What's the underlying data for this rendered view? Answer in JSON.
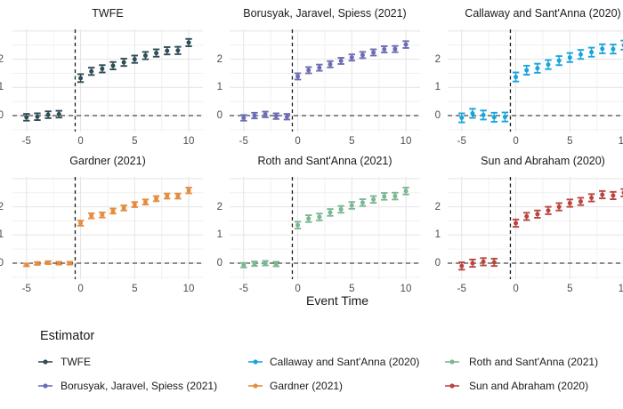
{
  "figure": {
    "xlabel": "Event Time",
    "x_tick_labels": [
      "-5",
      "0",
      "5",
      "10"
    ],
    "x_tick_values": [
      -5,
      0,
      5,
      10
    ],
    "y_tick_labels": [
      "0",
      "1",
      "2"
    ],
    "y_tick_values": [
      0,
      1,
      2
    ],
    "background_color": "#FFFFFF",
    "major_grid_color": "#E4E4E4",
    "minor_grid_color": "#F1F1F1",
    "reference_line_color": "#1A1A1A",
    "tick_text_color": "#4D4D4D"
  },
  "chart_data": {
    "type": "scatter",
    "subtype": "pointrange-event-study",
    "facet_titles": [
      "TWFE",
      "Borusyak, Jaravel, Spiess (2021)",
      "Callaway and Sant'Anna (2020)",
      "Gardner (2021)",
      "Roth and Sant'Anna (2021)",
      "Sun and Abraham (2020)"
    ],
    "xlabel": "Event Time",
    "x_range": [
      -6.3,
      11.3
    ],
    "y_range": [
      -0.57,
      3.06
    ],
    "x_ticks": [
      -5,
      0,
      5,
      10
    ],
    "y_ticks": [
      0,
      1,
      2
    ],
    "vline_x": -0.5,
    "hline_y": 0,
    "grid": true,
    "legend_position": "bottom",
    "panels": [
      {
        "title": "TWFE",
        "color": "#2F4D57",
        "x": [
          -5,
          -4,
          -3,
          -2,
          0,
          1,
          2,
          3,
          4,
          5,
          6,
          7,
          8,
          9,
          10
        ],
        "y": [
          -0.06,
          -0.04,
          0.03,
          0.05,
          1.33,
          1.57,
          1.66,
          1.77,
          1.89,
          2.0,
          2.13,
          2.22,
          2.3,
          2.31,
          2.59
        ],
        "err": [
          0.12,
          0.12,
          0.12,
          0.12,
          0.14,
          0.13,
          0.13,
          0.13,
          0.13,
          0.13,
          0.13,
          0.13,
          0.13,
          0.13,
          0.13
        ]
      },
      {
        "title": "Borusyak, Jaravel, Spiess (2021)",
        "color": "#6B6DB4",
        "x": [
          -5,
          -4,
          -3,
          -2,
          -1,
          0,
          1,
          2,
          3,
          4,
          5,
          6,
          7,
          8,
          9,
          10
        ],
        "y": [
          -0.08,
          0.0,
          0.04,
          -0.02,
          -0.04,
          1.39,
          1.61,
          1.7,
          1.82,
          1.94,
          2.06,
          2.15,
          2.24,
          2.35,
          2.36,
          2.52
        ],
        "err": [
          0.1,
          0.1,
          0.1,
          0.1,
          0.1,
          0.11,
          0.11,
          0.11,
          0.11,
          0.11,
          0.11,
          0.11,
          0.11,
          0.11,
          0.11,
          0.12
        ]
      },
      {
        "title": "Callaway and Sant'Anna (2020)",
        "color": "#18A5DC",
        "x": [
          -5,
          -4,
          -3,
          -2,
          -1,
          0,
          1,
          2,
          3,
          4,
          5,
          6,
          7,
          8,
          9,
          10
        ],
        "y": [
          -0.08,
          0.08,
          0.02,
          -0.06,
          -0.05,
          1.37,
          1.61,
          1.68,
          1.81,
          1.95,
          2.06,
          2.17,
          2.25,
          2.37,
          2.36,
          2.5
        ],
        "err": [
          0.16,
          0.16,
          0.16,
          0.16,
          0.16,
          0.16,
          0.16,
          0.16,
          0.16,
          0.16,
          0.16,
          0.16,
          0.16,
          0.16,
          0.16,
          0.16
        ]
      },
      {
        "title": "Gardner (2021)",
        "color": "#E58C3F",
        "x": [
          -5,
          -4,
          -3,
          -2,
          -1,
          0,
          1,
          2,
          3,
          4,
          5,
          6,
          7,
          8,
          9,
          10
        ],
        "y": [
          -0.06,
          -0.01,
          0.02,
          0.0,
          0.0,
          1.42,
          1.68,
          1.71,
          1.85,
          1.96,
          2.08,
          2.17,
          2.29,
          2.38,
          2.38,
          2.58
        ],
        "err": [
          0.05,
          0.05,
          0.05,
          0.05,
          0.05,
          0.09,
          0.09,
          0.09,
          0.09,
          0.09,
          0.09,
          0.09,
          0.09,
          0.09,
          0.09,
          0.1
        ]
      },
      {
        "title": "Roth and Sant'Anna (2021)",
        "color": "#7CB692",
        "x": [
          -5,
          -4,
          -3,
          -2,
          0,
          1,
          2,
          3,
          4,
          5,
          6,
          7,
          8,
          9,
          10
        ],
        "y": [
          -0.07,
          -0.02,
          0.0,
          -0.03,
          1.35,
          1.58,
          1.64,
          1.8,
          1.91,
          2.05,
          2.15,
          2.26,
          2.37,
          2.38,
          2.56
        ],
        "err": [
          0.08,
          0.08,
          0.08,
          0.08,
          0.12,
          0.12,
          0.12,
          0.12,
          0.12,
          0.12,
          0.12,
          0.12,
          0.12,
          0.12,
          0.12
        ]
      },
      {
        "title": "Sun and Abraham (2020)",
        "color": "#B8463E",
        "x": [
          -5,
          -4,
          -3,
          -2,
          0,
          1,
          2,
          3,
          4,
          5,
          6,
          7,
          8,
          9,
          10
        ],
        "y": [
          -0.1,
          0.0,
          0.05,
          0.03,
          1.42,
          1.66,
          1.74,
          1.87,
          2.0,
          2.13,
          2.19,
          2.32,
          2.43,
          2.4,
          2.5
        ],
        "err": [
          0.13,
          0.13,
          0.13,
          0.13,
          0.13,
          0.13,
          0.13,
          0.13,
          0.13,
          0.13,
          0.13,
          0.13,
          0.13,
          0.13,
          0.13
        ]
      }
    ]
  },
  "legend": {
    "title": "Estimator",
    "entries": [
      {
        "label": "TWFE",
        "color": "#2F4D57"
      },
      {
        "label": "Borusyak, Jaravel, Spiess (2021)",
        "color": "#6B6DB4"
      },
      {
        "label": "Callaway and Sant'Anna (2020)",
        "color": "#18A5DC"
      },
      {
        "label": "Gardner (2021)",
        "color": "#E58C3F"
      },
      {
        "label": "Roth and Sant'Anna (2021)",
        "color": "#7CB692"
      },
      {
        "label": "Sun and Abraham (2020)",
        "color": "#B8463E"
      }
    ]
  }
}
